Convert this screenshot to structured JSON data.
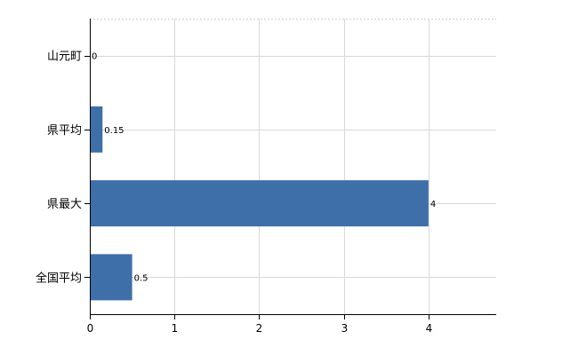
{
  "chart_data": {
    "type": "bar",
    "orientation": "horizontal",
    "categories": [
      "山元町",
      "県平均",
      "県最大",
      "全国平均"
    ],
    "values": [
      0,
      0.15,
      4,
      0.5
    ],
    "data_labels": [
      "0",
      "0.15",
      "4",
      "0.5"
    ],
    "xlim": [
      0,
      4.8
    ],
    "x_ticks": [
      0,
      1,
      2,
      3,
      4
    ],
    "x_tick_labels": [
      "0",
      "1",
      "2",
      "3",
      "4"
    ],
    "grid": true,
    "legend": "none",
    "bar_color": "#3e6fa8"
  }
}
